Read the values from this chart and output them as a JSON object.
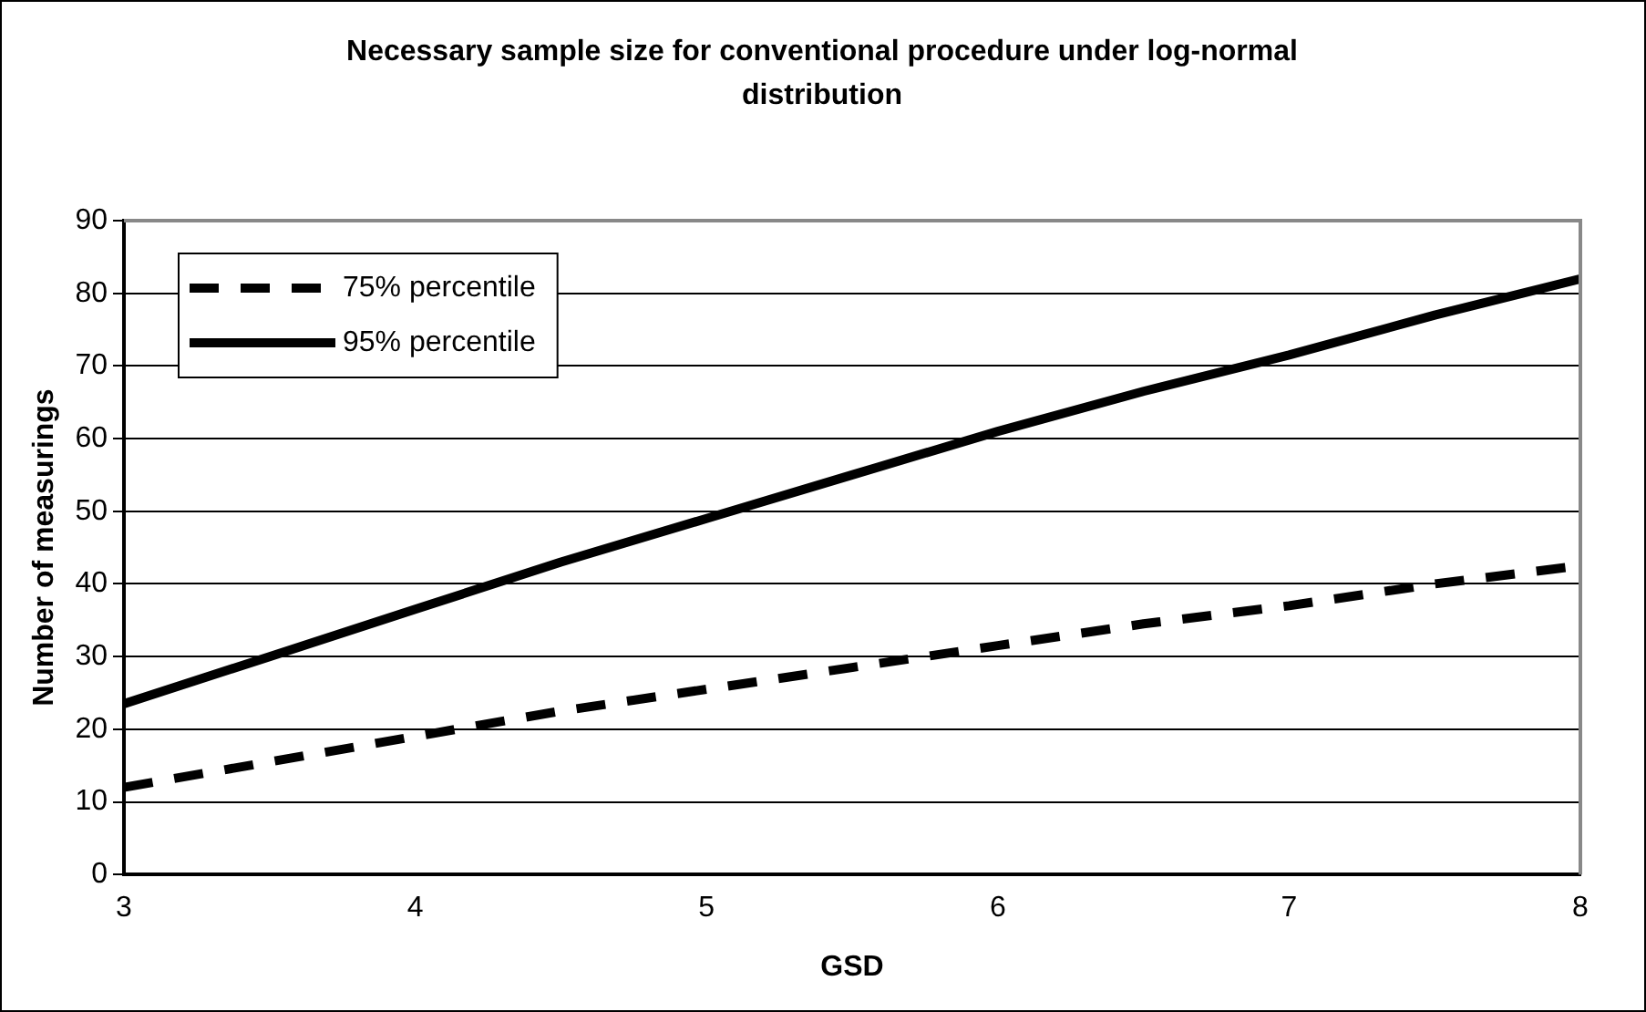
{
  "chart_data": {
    "type": "line",
    "title": "Necessary sample size for conventional procedure under log-normal distribution",
    "xlabel": "GSD",
    "ylabel": "Number of measurings",
    "x": [
      3,
      3.5,
      4,
      4.5,
      5,
      5.5,
      6,
      6.5,
      7,
      7.5,
      8
    ],
    "series": [
      {
        "name": "75% percentile",
        "color": "#000000",
        "line_style": "dashed",
        "values": [
          12,
          15.5,
          19,
          22.5,
          25.5,
          28.5,
          31.5,
          34.5,
          37,
          40,
          42.5
        ]
      },
      {
        "name": "95% percentile",
        "color": "#000000",
        "line_style": "solid",
        "values": [
          23.5,
          30,
          36.5,
          43,
          49,
          55,
          61,
          66.5,
          71.5,
          77,
          82
        ]
      }
    ],
    "xlim": [
      3,
      8
    ],
    "xticks": [
      3,
      4,
      5,
      6,
      7,
      8
    ],
    "ylim": [
      0,
      90
    ],
    "yticks": [
      0,
      10,
      20,
      30,
      40,
      50,
      60,
      70,
      80,
      90
    ],
    "grid": "y",
    "legend": "top left",
    "marker": "none"
  }
}
